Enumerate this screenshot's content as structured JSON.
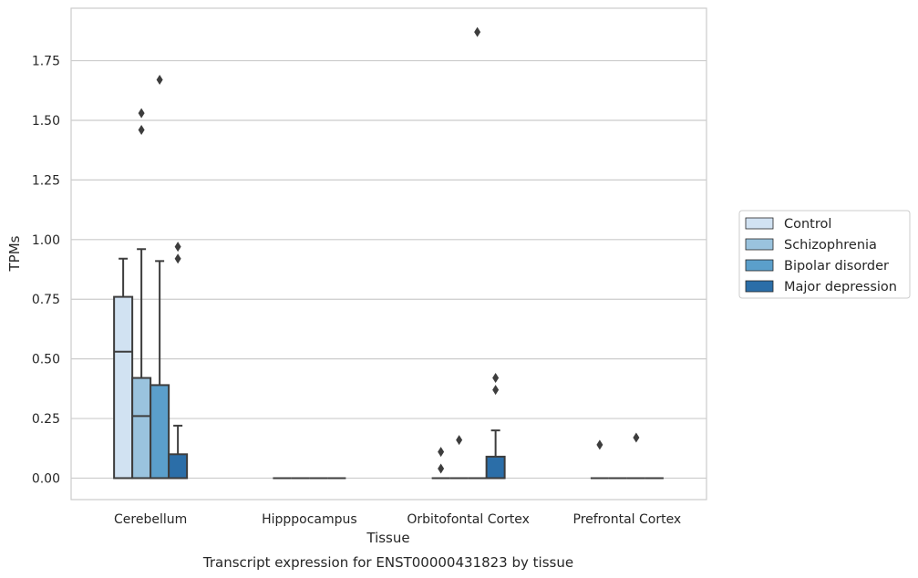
{
  "chart_data": {
    "type": "box",
    "title": "Transcript expression for ENST00000431823 by tissue",
    "xlabel": "Tissue",
    "ylabel": "TPMs",
    "ylim": [
      -0.09,
      1.97
    ],
    "yticks": [
      "0.00",
      "0.25",
      "0.50",
      "0.75",
      "1.00",
      "1.25",
      "1.50",
      "1.75"
    ],
    "grid": true,
    "legend_position": "right",
    "categories": [
      "Cerebellum",
      "Hipppocampus",
      "Orbitofontal Cortex",
      "Prefrontal Cortex"
    ],
    "series": [
      {
        "name": "Control",
        "color": "#d1e2f2",
        "boxes": [
          {
            "min": 0,
            "q1": 0,
            "median": 0.53,
            "q3": 0.76,
            "max": 0.92,
            "outliers": []
          },
          {
            "min": 0,
            "q1": 0,
            "median": 0,
            "q3": 0,
            "max": 0,
            "outliers": []
          },
          {
            "min": 0,
            "q1": 0,
            "median": 0,
            "q3": 0,
            "max": 0,
            "outliers": [
              0.04,
              0.11
            ]
          },
          {
            "min": 0,
            "q1": 0,
            "median": 0,
            "q3": 0,
            "max": 0,
            "outliers": [
              0.14
            ]
          }
        ]
      },
      {
        "name": "Schizophrenia",
        "color": "#9ac3de",
        "boxes": [
          {
            "min": 0,
            "q1": 0,
            "median": 0.26,
            "q3": 0.42,
            "max": 0.96,
            "outliers": [
              1.46,
              1.53
            ]
          },
          {
            "min": 0,
            "q1": 0,
            "median": 0,
            "q3": 0,
            "max": 0,
            "outliers": []
          },
          {
            "min": 0,
            "q1": 0,
            "median": 0,
            "q3": 0,
            "max": 0,
            "outliers": [
              0.16
            ]
          },
          {
            "min": 0,
            "q1": 0,
            "median": 0,
            "q3": 0,
            "max": 0,
            "outliers": []
          }
        ]
      },
      {
        "name": "Bipolar disorder",
        "color": "#5b9fcb",
        "boxes": [
          {
            "min": 0,
            "q1": 0,
            "median": 0,
            "q3": 0.39,
            "max": 0.91,
            "outliers": [
              1.67
            ]
          },
          {
            "min": 0,
            "q1": 0,
            "median": 0,
            "q3": 0,
            "max": 0,
            "outliers": []
          },
          {
            "min": 0,
            "q1": 0,
            "median": 0,
            "q3": 0,
            "max": 0,
            "outliers": [
              1.87
            ]
          },
          {
            "min": 0,
            "q1": 0,
            "median": 0,
            "q3": 0,
            "max": 0,
            "outliers": [
              0.17
            ]
          }
        ]
      },
      {
        "name": "Major depression",
        "color": "#2b6ea8",
        "boxes": [
          {
            "min": 0,
            "q1": 0,
            "median": 0,
            "q3": 0.1,
            "max": 0.22,
            "outliers": [
              0.92,
              0.97
            ]
          },
          {
            "min": 0,
            "q1": 0,
            "median": 0,
            "q3": 0,
            "max": 0,
            "outliers": []
          },
          {
            "min": 0,
            "q1": 0,
            "median": 0,
            "q3": 0.09,
            "max": 0.2,
            "outliers": [
              0.37,
              0.42
            ]
          },
          {
            "min": 0,
            "q1": 0,
            "median": 0,
            "q3": 0,
            "max": 0,
            "outliers": []
          }
        ]
      }
    ]
  }
}
